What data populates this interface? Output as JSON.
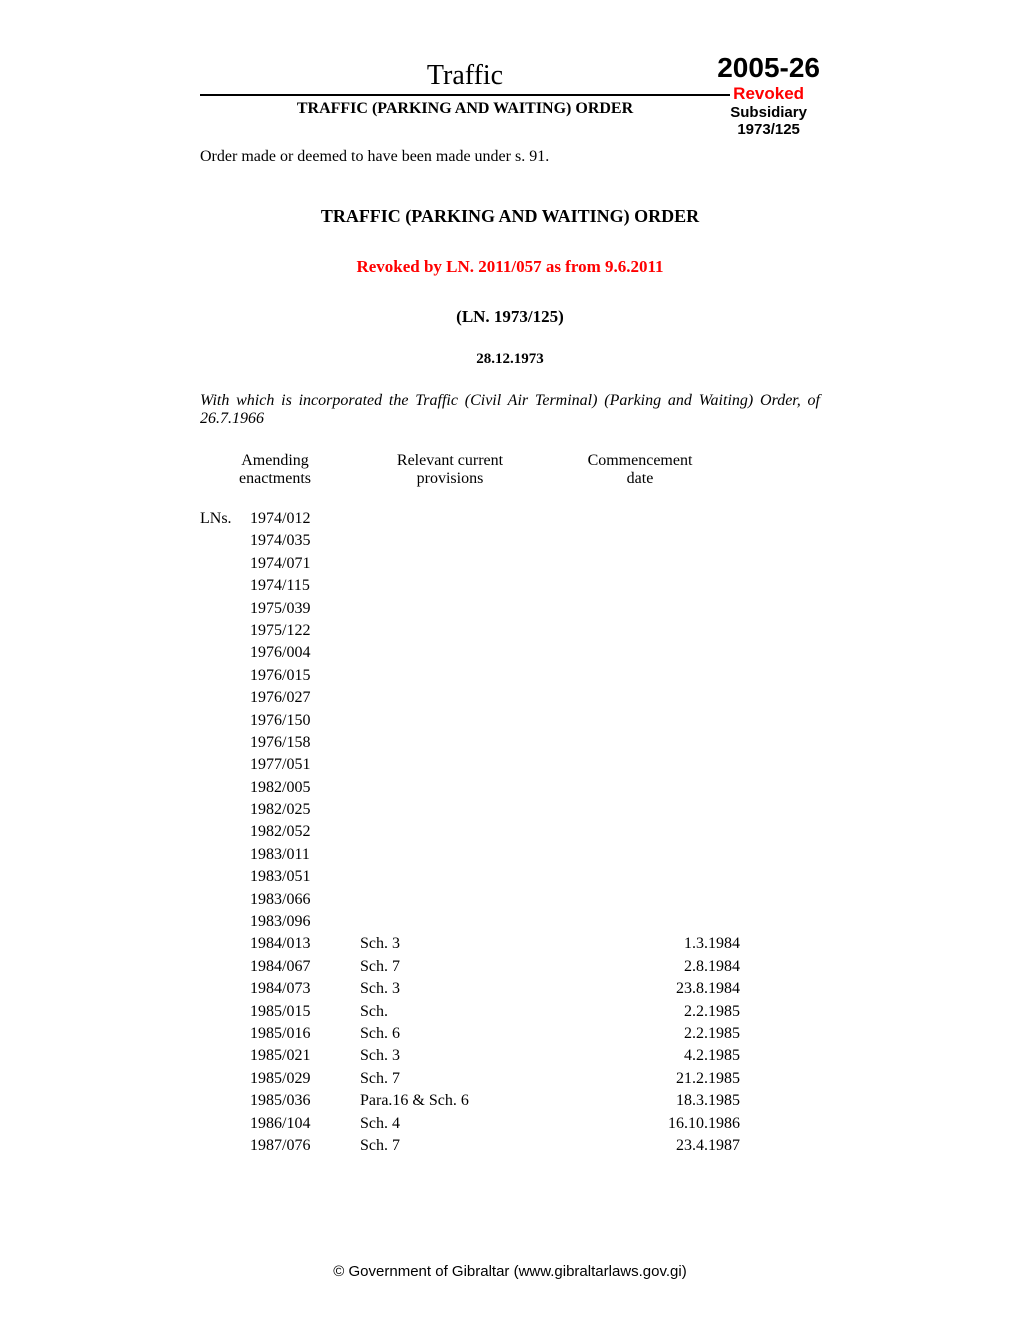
{
  "header": {
    "title": "Traffic",
    "subtitle": "TRAFFIC (PARKING AND WAITING) ORDER",
    "docNumber": "2005-26",
    "revokedLabel": "Revoked",
    "subsidiaryLabel": "Subsidiary",
    "refNumber": "1973/125"
  },
  "orderMade": "Order made or deemed to have been made under s. 91.",
  "mainTitle": "TRAFFIC (PARKING AND WAITING) ORDER",
  "revokedBy": "Revoked by LN. 2011/057 as from 9.6.2011",
  "lnNumber": "(LN. 1973/125)",
  "date": "28.12.1973",
  "incorporated": "With which is incorporated the Traffic (Civil Air Terminal) (Parking and Waiting) Order, of 26.7.1966",
  "columns": {
    "amending": "Amending enactments",
    "provisions": "Relevant current provisions",
    "commencement": "Commencement date"
  },
  "prefix": "LNs.",
  "rows": [
    {
      "enactment": "1974/012",
      "provision": "",
      "date": ""
    },
    {
      "enactment": "1974/035",
      "provision": "",
      "date": ""
    },
    {
      "enactment": "1974/071",
      "provision": "",
      "date": ""
    },
    {
      "enactment": "1974/115",
      "provision": "",
      "date": ""
    },
    {
      "enactment": "1975/039",
      "provision": "",
      "date": ""
    },
    {
      "enactment": "1975/122",
      "provision": "",
      "date": ""
    },
    {
      "enactment": "1976/004",
      "provision": "",
      "date": ""
    },
    {
      "enactment": "1976/015",
      "provision": "",
      "date": ""
    },
    {
      "enactment": "1976/027",
      "provision": "",
      "date": ""
    },
    {
      "enactment": "1976/150",
      "provision": "",
      "date": ""
    },
    {
      "enactment": "1976/158",
      "provision": "",
      "date": ""
    },
    {
      "enactment": "1977/051",
      "provision": "",
      "date": ""
    },
    {
      "enactment": "1982/005",
      "provision": "",
      "date": ""
    },
    {
      "enactment": "1982/025",
      "provision": "",
      "date": ""
    },
    {
      "enactment": "1982/052",
      "provision": "",
      "date": ""
    },
    {
      "enactment": "1983/011",
      "provision": "",
      "date": ""
    },
    {
      "enactment": "1983/051",
      "provision": "",
      "date": ""
    },
    {
      "enactment": "1983/066",
      "provision": "",
      "date": ""
    },
    {
      "enactment": "1983/096",
      "provision": "",
      "date": ""
    },
    {
      "enactment": "1984/013",
      "provision": "Sch. 3",
      "date": "1.3.1984"
    },
    {
      "enactment": "1984/067",
      "provision": "Sch. 7",
      "date": "2.8.1984"
    },
    {
      "enactment": "1984/073",
      "provision": "Sch. 3",
      "date": "23.8.1984"
    },
    {
      "enactment": "1985/015",
      "provision": "Sch.",
      "date": "2.2.1985"
    },
    {
      "enactment": "1985/016",
      "provision": "Sch. 6",
      "date": "2.2.1985"
    },
    {
      "enactment": "1985/021",
      "provision": "Sch. 3",
      "date": "4.2.1985"
    },
    {
      "enactment": "1985/029",
      "provision": "Sch. 7",
      "date": "21.2.1985"
    },
    {
      "enactment": "1985/036",
      "provision": "Para.16 & Sch. 6",
      "date": "18.3.1985"
    },
    {
      "enactment": "1986/104",
      "provision": "Sch. 4",
      "date": "16.10.1986"
    },
    {
      "enactment": "1987/076",
      "provision": "Sch. 7",
      "date": "23.4.1987"
    }
  ],
  "footer": "© Government of Gibraltar (www.gibraltarlaws.gov.gi)"
}
